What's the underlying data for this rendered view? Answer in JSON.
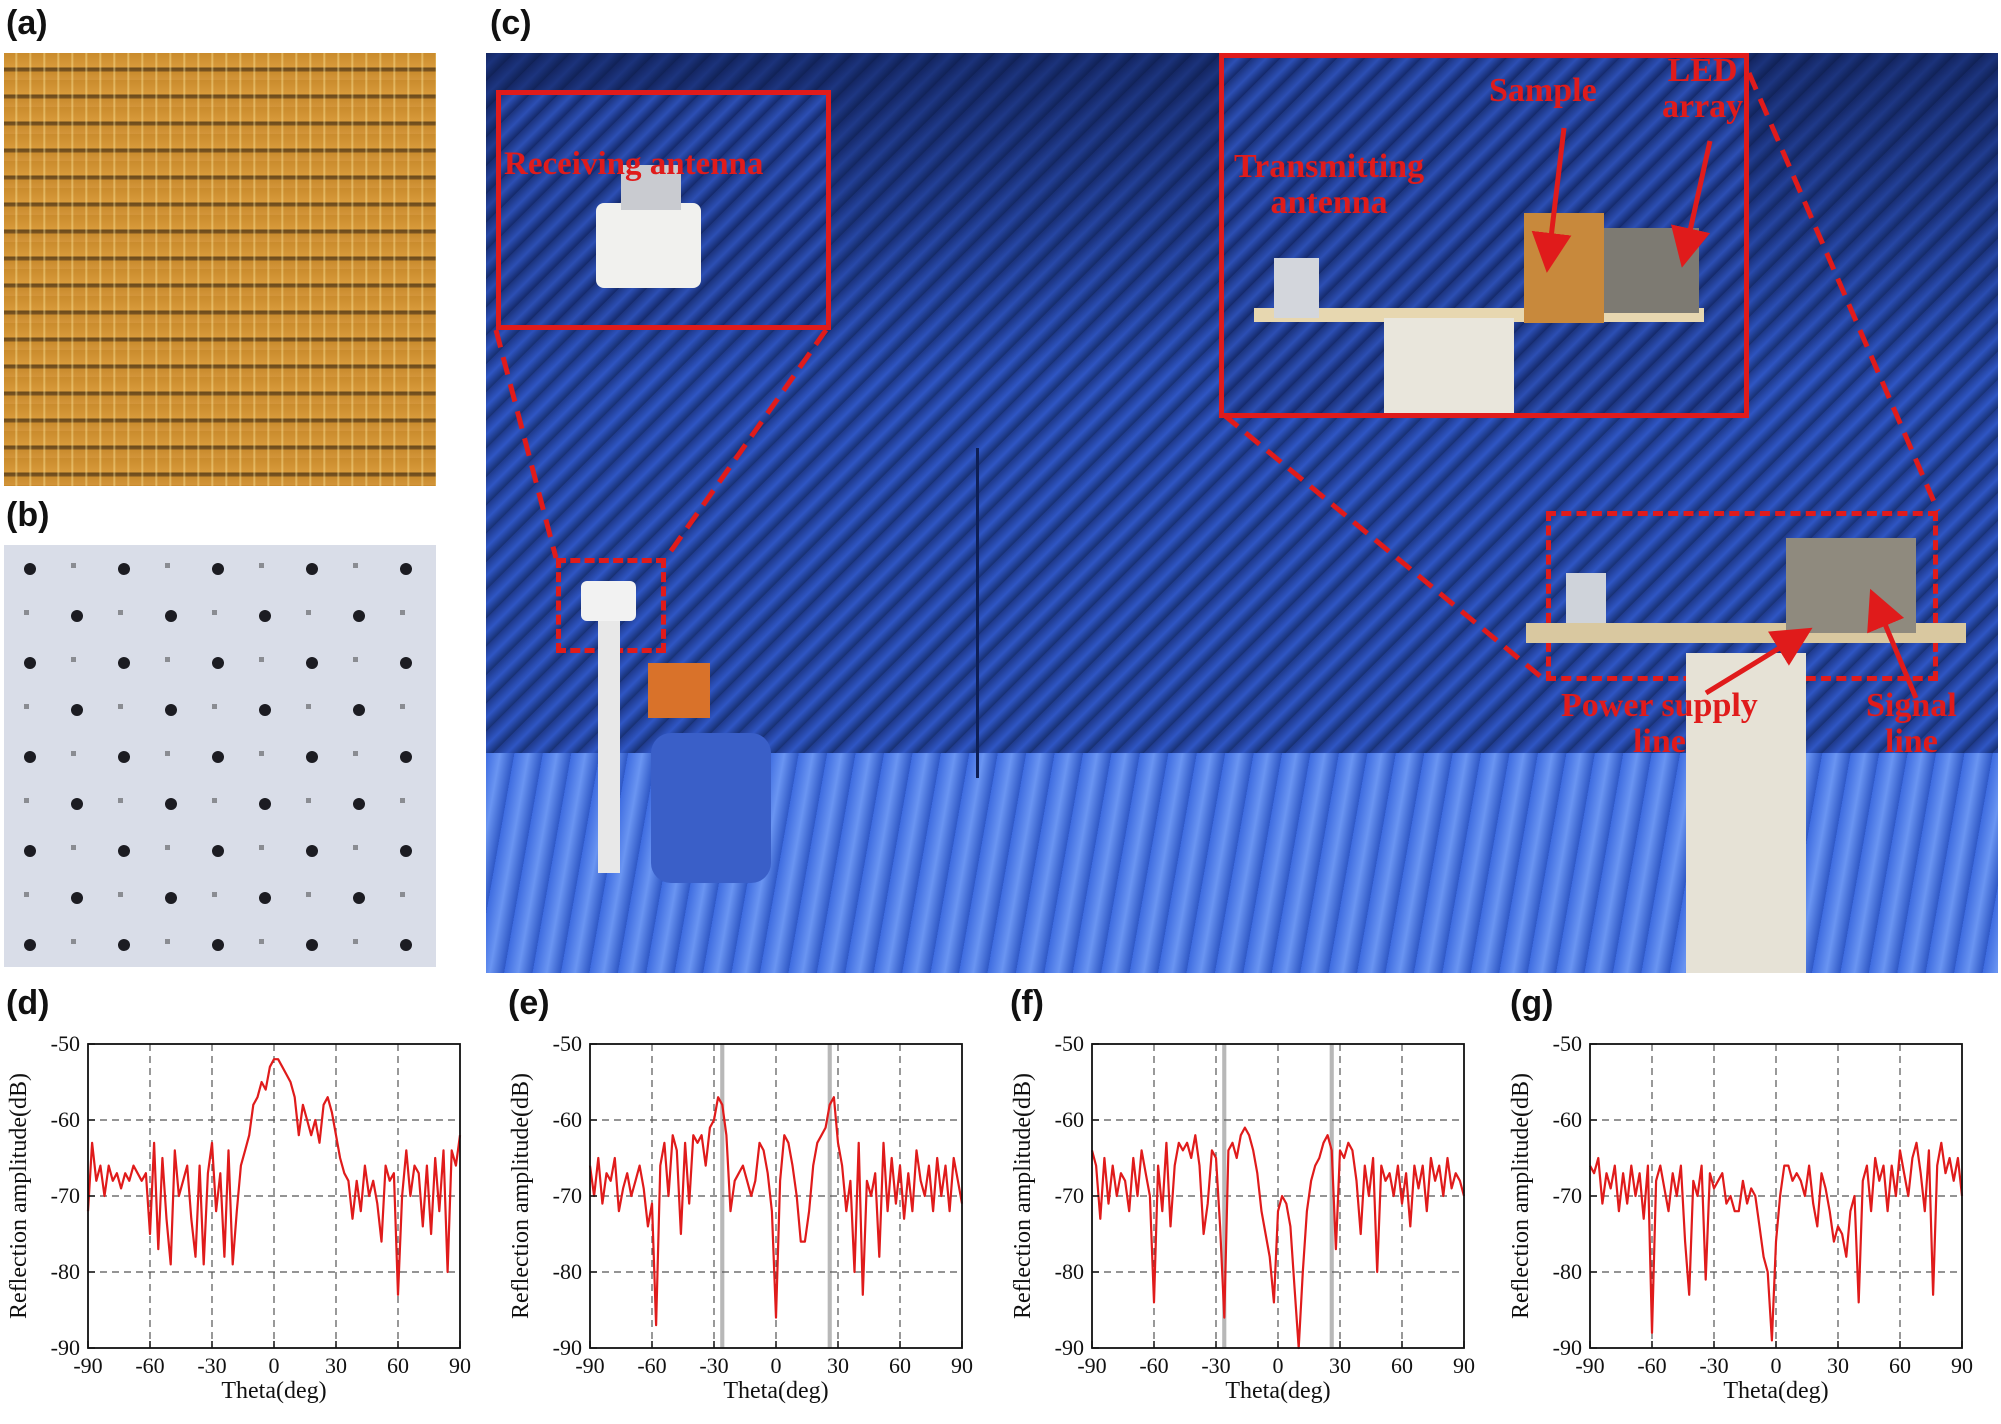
{
  "panels": {
    "a": "(a)",
    "b": "(b)",
    "c": "(c)",
    "d": "(d)",
    "e": "(e)",
    "f": "(f)",
    "g": "(g)"
  },
  "annotations": {
    "receiving_antenna": "Receiving antenna",
    "transmitting_antenna_1": "Transmitting",
    "transmitting_antenna_2": "antenna",
    "sample": "Sample",
    "led_array_1": "LED",
    "led_array_2": "array",
    "power_supply_1": "Power supply",
    "power_supply_2": "line",
    "signal_1": "Signal",
    "signal_2": "line"
  },
  "colors": {
    "trace": "#e01b1b",
    "annotation": "#e01b1b",
    "highlight_band": "#b8b8b8",
    "grid": "#555555"
  },
  "chart_data": [
    {
      "panel": "(d)",
      "type": "line",
      "xlabel": "Theta(deg)",
      "ylabel": "Reflection amplitude(dB)",
      "xlim": [
        -90,
        90
      ],
      "ylim": [
        -90,
        -50
      ],
      "xticks": [
        -90,
        -60,
        -30,
        0,
        30,
        60,
        90
      ],
      "yticks": [
        -50,
        -60,
        -70,
        -80,
        -90
      ],
      "grid": "dashed at -60, -30, 0, 30, 60 and -60, -70, -80 dB",
      "highlight_bands": [],
      "x": [
        -90,
        -88,
        -86,
        -84,
        -82,
        -80,
        -78,
        -76,
        -74,
        -72,
        -70,
        -68,
        -66,
        -64,
        -62,
        -60,
        -58,
        -56,
        -54,
        -52,
        -50,
        -48,
        -46,
        -44,
        -42,
        -40,
        -38,
        -36,
        -34,
        -32,
        -30,
        -28,
        -26,
        -24,
        -22,
        -20,
        -18,
        -16,
        -14,
        -12,
        -10,
        -8,
        -6,
        -4,
        -2,
        0,
        2,
        4,
        6,
        8,
        10,
        12,
        14,
        16,
        18,
        20,
        22,
        24,
        26,
        28,
        30,
        32,
        34,
        36,
        38,
        40,
        42,
        44,
        46,
        48,
        50,
        52,
        54,
        56,
        58,
        60,
        62,
        64,
        66,
        68,
        70,
        72,
        74,
        76,
        78,
        80,
        82,
        84,
        86,
        88,
        90
      ],
      "y": [
        -72,
        -63,
        -68,
        -66,
        -70,
        -66,
        -68,
        -67,
        -69,
        -67,
        -68,
        -66,
        -67,
        -68,
        -67,
        -75,
        -63,
        -77,
        -65,
        -73,
        -79,
        -64,
        -70,
        -68,
        -66,
        -73,
        -78,
        -66,
        -79,
        -67,
        -63,
        -72,
        -67,
        -78,
        -64,
        -79,
        -72,
        -66,
        -64,
        -62,
        -58,
        -57,
        -55,
        -56,
        -53,
        -52,
        -52,
        -53,
        -54,
        -55,
        -57,
        -62,
        -58,
        -60,
        -62,
        -60,
        -63,
        -58,
        -57,
        -59,
        -62,
        -65,
        -67,
        -68,
        -73,
        -68,
        -72,
        -66,
        -70,
        -68,
        -71,
        -76,
        -66,
        -68,
        -67,
        -83,
        -70,
        -64,
        -70,
        -66,
        -67,
        -74,
        -66,
        -75,
        -65,
        -72,
        -64,
        -80,
        -64,
        -66,
        -62
      ]
    },
    {
      "panel": "(e)",
      "type": "line",
      "xlabel": "Theta(deg)",
      "ylabel": "Reflection amplitude(dB)",
      "xlim": [
        -90,
        90
      ],
      "ylim": [
        -90,
        -50
      ],
      "xticks": [
        -90,
        -60,
        -30,
        0,
        30,
        60,
        90
      ],
      "yticks": [
        -50,
        -60,
        -70,
        -80,
        -90
      ],
      "grid": "dashed at -60, -30, 0, 30, 60 and -60, -70, -80 dB",
      "highlight_bands": [
        [
          -27,
          -25
        ],
        [
          25,
          27
        ]
      ],
      "x": [
        -90,
        -88,
        -86,
        -84,
        -82,
        -80,
        -78,
        -76,
        -74,
        -72,
        -70,
        -68,
        -66,
        -64,
        -62,
        -60,
        -58,
        -56,
        -54,
        -52,
        -50,
        -48,
        -46,
        -44,
        -42,
        -40,
        -38,
        -36,
        -34,
        -32,
        -30,
        -28,
        -26,
        -24,
        -22,
        -20,
        -18,
        -16,
        -14,
        -12,
        -10,
        -8,
        -6,
        -4,
        -2,
        0,
        2,
        4,
        6,
        8,
        10,
        12,
        14,
        16,
        18,
        20,
        22,
        24,
        26,
        28,
        30,
        32,
        34,
        36,
        38,
        40,
        42,
        44,
        46,
        48,
        50,
        52,
        54,
        56,
        58,
        60,
        62,
        64,
        66,
        68,
        70,
        72,
        74,
        76,
        78,
        80,
        82,
        84,
        86,
        88,
        90
      ],
      "y": [
        -66,
        -70,
        -65,
        -71,
        -67,
        -68,
        -65,
        -72,
        -69,
        -67,
        -70,
        -68,
        -66,
        -69,
        -74,
        -71,
        -87,
        -66,
        -63,
        -70,
        -62,
        -64,
        -75,
        -63,
        -71,
        -62,
        -63,
        -62,
        -66,
        -61,
        -60,
        -57,
        -58,
        -62,
        -72,
        -68,
        -67,
        -66,
        -68,
        -70,
        -68,
        -63,
        -64,
        -67,
        -72,
        -86,
        -68,
        -62,
        -63,
        -66,
        -70,
        -76,
        -76,
        -72,
        -66,
        -63,
        -62,
        -61,
        -58,
        -57,
        -63,
        -66,
        -72,
        -68,
        -80,
        -63,
        -83,
        -68,
        -70,
        -67,
        -78,
        -63,
        -72,
        -65,
        -71,
        -66,
        -73,
        -67,
        -72,
        -64,
        -68,
        -70,
        -66,
        -72,
        -65,
        -70,
        -66,
        -72,
        -65,
        -68,
        -71
      ]
    },
    {
      "panel": "(f)",
      "type": "line",
      "xlabel": "Theta(deg)",
      "ylabel": "Reflection amplitude(dB)",
      "xlim": [
        -90,
        90
      ],
      "ylim": [
        -90,
        -50
      ],
      "xticks": [
        -90,
        -60,
        -30,
        0,
        30,
        60,
        90
      ],
      "yticks": [
        -50,
        -60,
        -70,
        -80,
        -90
      ],
      "grid": "dashed at -60, -30, 0, 30, 60 and -60, -70, -80 dB",
      "highlight_bands": [
        [
          -27,
          -25
        ],
        [
          25,
          27
        ]
      ],
      "x": [
        -90,
        -88,
        -86,
        -84,
        -82,
        -80,
        -78,
        -76,
        -74,
        -72,
        -70,
        -68,
        -66,
        -64,
        -62,
        -60,
        -58,
        -56,
        -54,
        -52,
        -50,
        -48,
        -46,
        -44,
        -42,
        -40,
        -38,
        -36,
        -34,
        -32,
        -30,
        -28,
        -26,
        -24,
        -22,
        -20,
        -18,
        -16,
        -14,
        -12,
        -10,
        -8,
        -6,
        -4,
        -2,
        0,
        2,
        4,
        6,
        8,
        10,
        12,
        14,
        16,
        18,
        20,
        22,
        24,
        26,
        28,
        30,
        32,
        34,
        36,
        38,
        40,
        42,
        44,
        46,
        48,
        50,
        52,
        54,
        56,
        58,
        60,
        62,
        64,
        66,
        68,
        70,
        72,
        74,
        76,
        78,
        80,
        82,
        84,
        86,
        88,
        90
      ],
      "y": [
        -64,
        -66,
        -73,
        -65,
        -71,
        -66,
        -70,
        -67,
        -68,
        -72,
        -65,
        -70,
        -64,
        -67,
        -70,
        -84,
        -66,
        -72,
        -63,
        -74,
        -66,
        -63,
        -64,
        -63,
        -65,
        -62,
        -66,
        -75,
        -71,
        -64,
        -65,
        -74,
        -86,
        -64,
        -63,
        -65,
        -62,
        -61,
        -62,
        -64,
        -67,
        -72,
        -75,
        -78,
        -84,
        -72,
        -70,
        -71,
        -74,
        -82,
        -90,
        -80,
        -72,
        -68,
        -66,
        -65,
        -63,
        -62,
        -64,
        -77,
        -64,
        -65,
        -63,
        -64,
        -68,
        -75,
        -66,
        -70,
        -65,
        -80,
        -66,
        -68,
        -67,
        -70,
        -66,
        -71,
        -67,
        -74,
        -66,
        -69,
        -66,
        -72,
        -65,
        -68,
        -66,
        -70,
        -65,
        -69,
        -67,
        -68,
        -70
      ]
    },
    {
      "panel": "(g)",
      "type": "line",
      "xlabel": "Theta(deg)",
      "ylabel": "Reflection amplitude(dB)",
      "xlim": [
        -90,
        90
      ],
      "ylim": [
        -90,
        -50
      ],
      "xticks": [
        -90,
        -60,
        -30,
        0,
        30,
        60,
        90
      ],
      "yticks": [
        -50,
        -60,
        -70,
        -80,
        -90
      ],
      "grid": "dashed at -60, -30, 0, 30, 60 and -60, -70, -80 dB",
      "highlight_bands": [],
      "x": [
        -90,
        -88,
        -86,
        -84,
        -82,
        -80,
        -78,
        -76,
        -74,
        -72,
        -70,
        -68,
        -66,
        -64,
        -62,
        -60,
        -58,
        -56,
        -54,
        -52,
        -50,
        -48,
        -46,
        -44,
        -42,
        -40,
        -38,
        -36,
        -34,
        -32,
        -30,
        -28,
        -26,
        -24,
        -22,
        -20,
        -18,
        -16,
        -14,
        -12,
        -10,
        -8,
        -6,
        -4,
        -2,
        0,
        2,
        4,
        6,
        8,
        10,
        12,
        14,
        16,
        18,
        20,
        22,
        24,
        26,
        28,
        30,
        32,
        34,
        36,
        38,
        40,
        42,
        44,
        46,
        48,
        50,
        52,
        54,
        56,
        58,
        60,
        62,
        64,
        66,
        68,
        70,
        72,
        74,
        76,
        78,
        80,
        82,
        84,
        86,
        88,
        90
      ],
      "y": [
        -66,
        -67,
        -65,
        -71,
        -67,
        -69,
        -66,
        -72,
        -67,
        -71,
        -66,
        -70,
        -67,
        -73,
        -66,
        -88,
        -68,
        -66,
        -69,
        -72,
        -67,
        -70,
        -66,
        -76,
        -83,
        -68,
        -70,
        -66,
        -81,
        -67,
        -69,
        -68,
        -67,
        -71,
        -70,
        -72,
        -72,
        -68,
        -71,
        -69,
        -70,
        -74,
        -78,
        -80,
        -89,
        -76,
        -70,
        -66,
        -66,
        -68,
        -67,
        -68,
        -70,
        -66,
        -71,
        -74,
        -67,
        -69,
        -72,
        -76,
        -74,
        -75,
        -78,
        -72,
        -70,
        -84,
        -68,
        -66,
        -72,
        -65,
        -68,
        -66,
        -72,
        -66,
        -70,
        -64,
        -67,
        -70,
        -65,
        -63,
        -67,
        -72,
        -64,
        -83,
        -66,
        -63,
        -67,
        -65,
        -68,
        -65,
        -70
      ]
    }
  ]
}
